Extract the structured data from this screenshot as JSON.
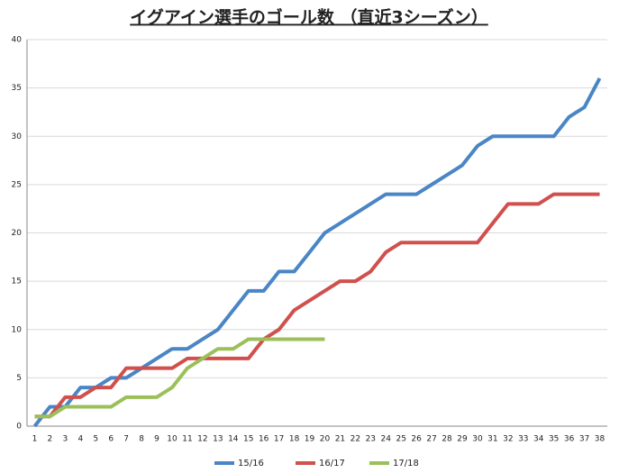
{
  "chart_data": {
    "type": "line",
    "title": "イグアイン選手のゴール数 （直近3シーズン）",
    "categories": [
      1,
      2,
      3,
      4,
      5,
      6,
      7,
      8,
      9,
      10,
      11,
      12,
      13,
      14,
      15,
      16,
      17,
      18,
      19,
      20,
      21,
      22,
      23,
      24,
      25,
      26,
      27,
      28,
      29,
      30,
      31,
      32,
      33,
      34,
      35,
      36,
      37,
      38
    ],
    "series": [
      {
        "name": "15/16",
        "color": "#4a86c5",
        "values": [
          0,
          2,
          2,
          4,
          4,
          5,
          5,
          6,
          7,
          8,
          8,
          9,
          10,
          12,
          14,
          14,
          16,
          16,
          18,
          20,
          21,
          22,
          23,
          24,
          24,
          24,
          25,
          26,
          27,
          29,
          30,
          30,
          30,
          30,
          30,
          32,
          33,
          36
        ]
      },
      {
        "name": "16/17",
        "color": "#d0504d",
        "values": [
          1,
          1,
          3,
          3,
          4,
          4,
          6,
          6,
          6,
          6,
          7,
          7,
          7,
          7,
          7,
          9,
          10,
          12,
          13,
          14,
          15,
          15,
          16,
          18,
          19,
          19,
          19,
          19,
          19,
          19,
          21,
          23,
          23,
          23,
          24,
          24,
          24,
          24
        ]
      },
      {
        "name": "17/18",
        "color": "#9bc05a",
        "values": [
          1,
          1,
          2,
          2,
          2,
          2,
          3,
          3,
          3,
          4,
          6,
          7,
          8,
          8,
          9,
          9,
          9,
          9,
          9,
          9,
          null,
          null,
          null,
          null,
          null,
          null,
          null,
          null,
          null,
          null,
          null,
          null,
          null,
          null,
          null,
          null,
          null,
          null
        ]
      }
    ],
    "ylim": [
      0,
      40
    ],
    "yticks": [
      0,
      5,
      10,
      15,
      20,
      25,
      30,
      35,
      40
    ],
    "grid": true,
    "legend": "bottom"
  }
}
